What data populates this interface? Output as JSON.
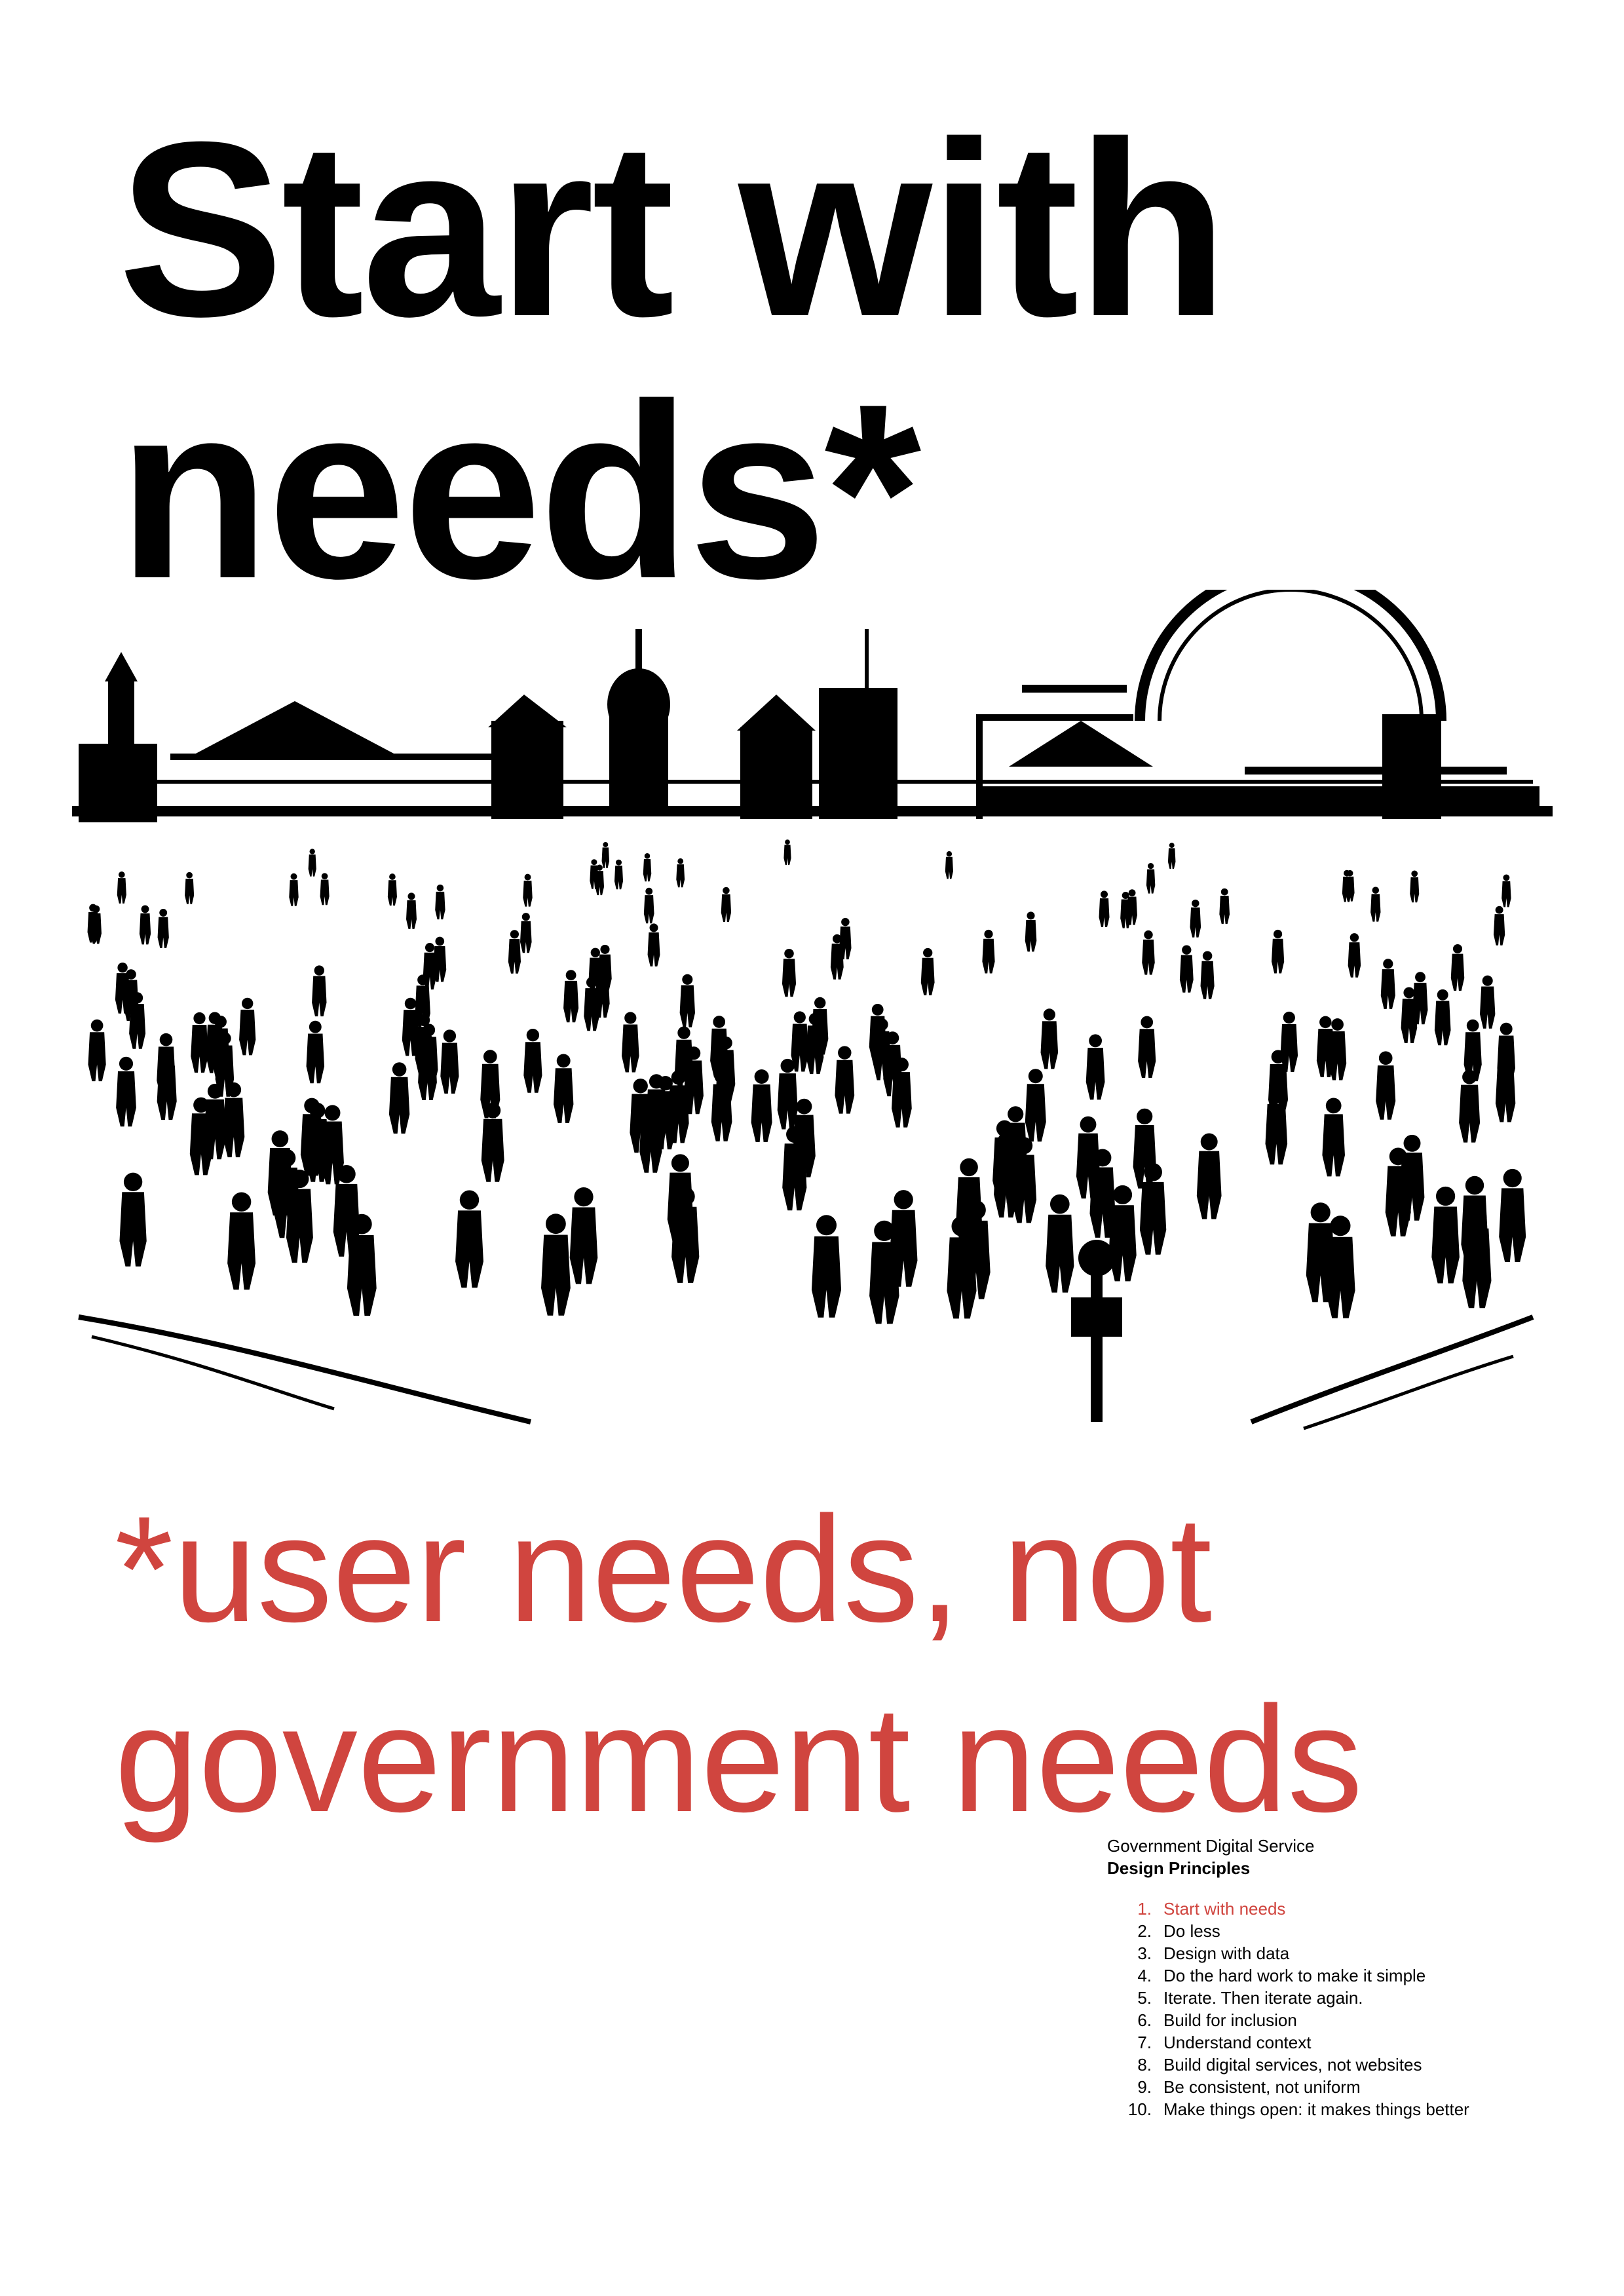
{
  "headline": {
    "line1": "Start with",
    "line2": "needs*"
  },
  "subhead": {
    "line1": "*user needs, not",
    "line2": "government needs"
  },
  "colors": {
    "text": "#000000",
    "accent": "#d0453f",
    "background": "#ffffff"
  },
  "illustration": {
    "icon": "crowd-illustration"
  },
  "principles": {
    "organisation": "Government Digital Service",
    "series_title": "Design Principles",
    "items": [
      {
        "num": "1.",
        "label": "Start with needs"
      },
      {
        "num": "2.",
        "label": "Do less"
      },
      {
        "num": "3.",
        "label": "Design with data"
      },
      {
        "num": "4.",
        "label": "Do the hard work to make it simple"
      },
      {
        "num": "5.",
        "label": "Iterate. Then iterate again."
      },
      {
        "num": "6.",
        "label": "Build for inclusion"
      },
      {
        "num": "7.",
        "label": "Understand context"
      },
      {
        "num": "8.",
        "label": "Build digital services, not websites"
      },
      {
        "num": "9.",
        "label": "Be consistent, not uniform"
      },
      {
        "num": "10.",
        "label": "Make things open: it makes things better"
      }
    ]
  }
}
